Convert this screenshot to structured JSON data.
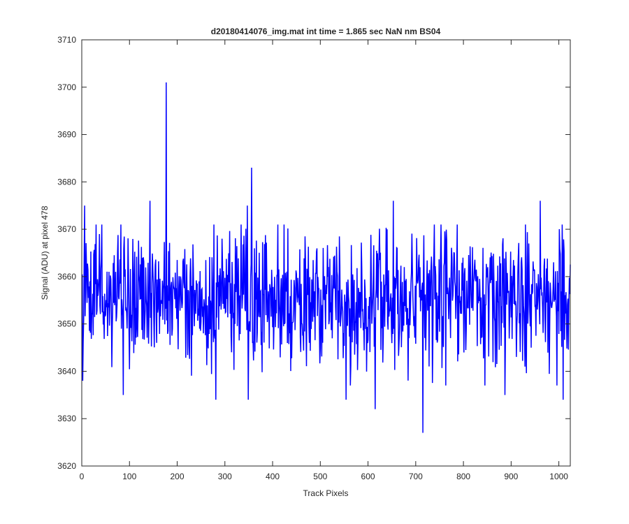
{
  "chart_data": {
    "type": "line",
    "title": "d20180414076_img.mat int time = 1.865 sec  NaN nm BS04",
    "xlabel": "Track Pixels",
    "ylabel": "Signal (ADU) at pixel 478",
    "xlim": [
      0,
      1024
    ],
    "ylim": [
      3620,
      3710
    ],
    "x_ticks": [
      0,
      100,
      200,
      300,
      400,
      500,
      600,
      700,
      800,
      900,
      1000
    ],
    "y_ticks": [
      3620,
      3630,
      3640,
      3650,
      3660,
      3670,
      3680,
      3690,
      3700,
      3710
    ],
    "grid": false,
    "box": true,
    "series": [
      {
        "color": "#0000ff",
        "noise": {
          "n_points": 1024,
          "mean": 3655.8,
          "std": 7.0,
          "min": 3626.5,
          "max": 3701
        },
        "notable_points": [
          {
            "x": 176,
            "y": 3701
          },
          {
            "x": 355,
            "y": 3683
          },
          {
            "x": 714,
            "y": 3627
          },
          {
            "x": 614,
            "y": 3632
          },
          {
            "x": 280,
            "y": 3634
          },
          {
            "x": 1008,
            "y": 3634
          },
          {
            "x": 348,
            "y": 3634
          },
          {
            "x": 553,
            "y": 3634
          },
          {
            "x": 652,
            "y": 3676
          },
          {
            "x": 142,
            "y": 3676
          },
          {
            "x": 346,
            "y": 3675
          },
          {
            "x": 5,
            "y": 3675
          },
          {
            "x": 960,
            "y": 3676
          },
          {
            "x": 86,
            "y": 3635
          },
          {
            "x": 886,
            "y": 3635
          },
          {
            "x": 1,
            "y": 3638
          }
        ]
      }
    ]
  }
}
